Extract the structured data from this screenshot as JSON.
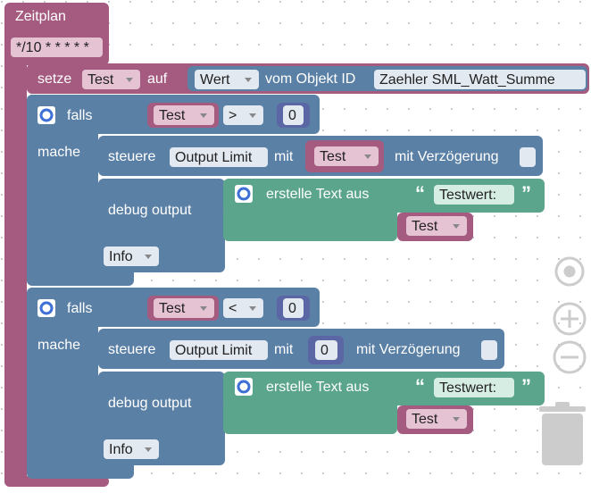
{
  "schedule": {
    "label": "Zeitplan",
    "cron": "*/10 * * * * *"
  },
  "set_block": {
    "label": "setze",
    "variable": "Test",
    "to": "auf",
    "source": "Wert",
    "of": "vom Objekt ID",
    "object_id": "Zaehler SML_Watt_Summe"
  },
  "if_blocks": [
    {
      "if": "falls",
      "left": "Test",
      "operator": ">",
      "right": "0",
      "do": "mache",
      "control": {
        "label": "steuere",
        "target": "Output Limit",
        "with": "mit",
        "value": "Test",
        "delay": "mit Verzögerung"
      },
      "debug": {
        "label": "debug output",
        "text_join": "erstelle Text aus",
        "quote_open": "“",
        "text": "Testwert:",
        "quote_close": "”",
        "variable": "Test",
        "level": "Info"
      }
    },
    {
      "if": "falls",
      "left": "Test",
      "operator": "<",
      "right": "0",
      "do": "mache",
      "control": {
        "label": "steuere",
        "target": "Output Limit",
        "with": "mit",
        "value": "0",
        "delay": "mit Verzögerung"
      },
      "debug": {
        "label": "debug output",
        "text_join": "erstelle Text aus",
        "quote_open": "“",
        "text": "Testwert:",
        "quote_close": "”",
        "variable": "Test",
        "level": "Info"
      }
    }
  ]
}
